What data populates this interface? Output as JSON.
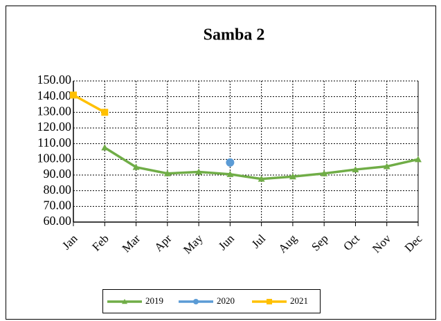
{
  "chart_data": {
    "type": "line",
    "title": "Samba 2",
    "categories": [
      "Jan",
      "Feb",
      "Mar",
      "Apr",
      "May",
      "Jun",
      "Jul",
      "Aug",
      "Sep",
      "Oct",
      "Nov",
      "Dec"
    ],
    "series": [
      {
        "name": "2019",
        "color": "#70ad47",
        "marker": "triangle",
        "values": [
          null,
          107.5,
          95,
          91,
          92,
          90.5,
          87.5,
          89,
          91,
          93.5,
          95.5,
          100
        ]
      },
      {
        "name": "2020",
        "color": "#5b9bd5",
        "marker": "circle",
        "values": [
          null,
          null,
          null,
          null,
          null,
          98,
          null,
          null,
          null,
          null,
          null,
          null
        ]
      },
      {
        "name": "2021",
        "color": "#ffc000",
        "marker": "square",
        "values": [
          141,
          130,
          null,
          null,
          null,
          null,
          null,
          null,
          null,
          null,
          null,
          null
        ]
      }
    ],
    "ylim": [
      60,
      150
    ],
    "yticks": [
      {
        "value": 60,
        "label": "60.00"
      },
      {
        "value": 70,
        "label": "70.00"
      },
      {
        "value": 80,
        "label": "80.00"
      },
      {
        "value": 90,
        "label": "90.00"
      },
      {
        "value": 100,
        "label": "100.00"
      },
      {
        "value": 110,
        "label": "110.00"
      },
      {
        "value": 120,
        "label": "120.00"
      },
      {
        "value": 130,
        "label": "130.00"
      },
      {
        "value": 140,
        "label": "140.00"
      },
      {
        "value": 150,
        "label": "150.00"
      }
    ],
    "grid": true,
    "legend": "bottom"
  }
}
